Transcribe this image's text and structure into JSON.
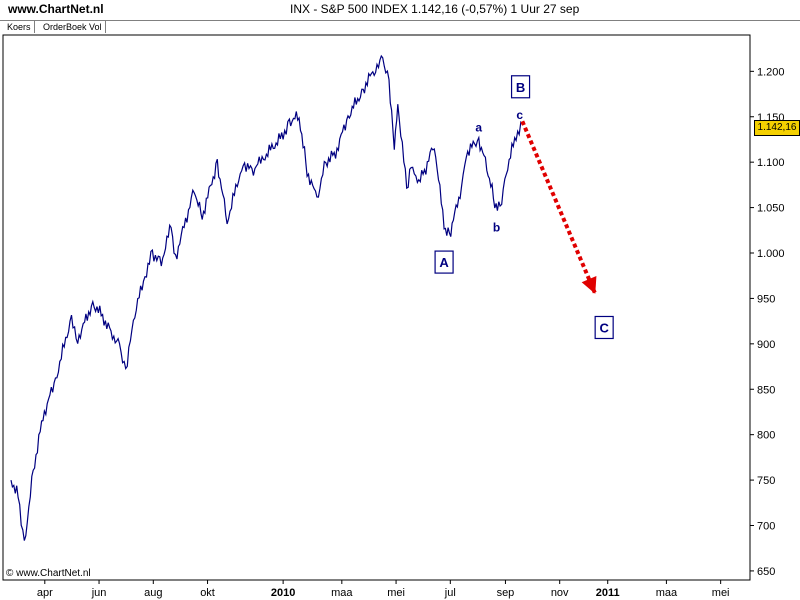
{
  "header": {
    "site": "www.ChartNet.nl",
    "title": "INX - S&P 500 INDEX    1.142,16 (-0,57%)    1 Uur  27 sep"
  },
  "tabs": [
    "Koers",
    "OrderBoek Vol"
  ],
  "copyright": "© www.ChartNet.nl",
  "chart_data": {
    "type": "line",
    "ylim": [
      640,
      1240
    ],
    "y_ticks": [
      650,
      700,
      750,
      800,
      850,
      900,
      950,
      1000,
      1050,
      1100,
      1150,
      1200
    ],
    "y_tick_labels": [
      "650",
      "700",
      "750",
      "800",
      "850",
      "900",
      "950",
      "1.000",
      "1.050",
      "1.100",
      "1.150",
      "1.200"
    ],
    "x_labels": [
      "apr",
      "jun",
      "aug",
      "okt",
      "2010",
      "maa",
      "mei",
      "jul",
      "sep",
      "nov",
      "2011",
      "maa",
      "mei"
    ],
    "last_value_label": "1.142,16",
    "series": [
      {
        "color": "#000080",
        "x": [
          "2009-03-01",
          "2009-03-09",
          "2009-03-16",
          "2009-03-26",
          "2009-04-06",
          "2009-04-20",
          "2009-05-08",
          "2009-05-15",
          "2009-06-01",
          "2009-06-12",
          "2009-06-23",
          "2009-07-01",
          "2009-07-08",
          "2009-07-15",
          "2009-07-28",
          "2009-08-07",
          "2009-08-17",
          "2009-08-28",
          "2009-09-02",
          "2009-09-23",
          "2009-10-02",
          "2009-10-19",
          "2009-10-30",
          "2009-11-17",
          "2009-11-27",
          "2009-12-10",
          "2010-01-01",
          "2010-01-08",
          "2010-01-19",
          "2010-01-28",
          "2010-02-08",
          "2010-02-18",
          "2010-03-01",
          "2010-03-15",
          "2010-04-01",
          "2010-04-15",
          "2010-04-23",
          "2010-04-30",
          "2010-05-06",
          "2010-05-10",
          "2010-05-20",
          "2010-05-25",
          "2010-06-01",
          "2010-06-09",
          "2010-06-20",
          "2010-07-01",
          "2010-07-07",
          "2010-07-19",
          "2010-07-26",
          "2010-08-09",
          "2010-08-18",
          "2010-08-27",
          "2010-09-02",
          "2010-09-09",
          "2010-09-20",
          "2010-09-27"
        ],
        "values": [
          750,
          735,
          680,
          760,
          820,
          860,
          930,
          905,
          945,
          930,
          910,
          900,
          870,
          920,
          970,
          1000,
          990,
          1030,
          995,
          1070,
          1040,
          1100,
          1035,
          1100,
          1090,
          1105,
          1130,
          1145,
          1150,
          1090,
          1060,
          1100,
          1110,
          1150,
          1180,
          1205,
          1215,
          1190,
          1120,
          1165,
          1070,
          1100,
          1080,
          1090,
          1120,
          1030,
          1020,
          1065,
          1110,
          1125,
          1095,
          1055,
          1050,
          1090,
          1130,
          1142
        ]
      }
    ],
    "annotations": [
      {
        "label": "A",
        "x": "2010-07-01",
        "value": 990,
        "boxed": true
      },
      {
        "label": "B",
        "x": "2010-09-25",
        "value": 1183,
        "boxed": true
      },
      {
        "label": "C",
        "x": "2010-12-28",
        "value": 918,
        "boxed": true
      },
      {
        "label": "a",
        "x": "2010-08-09",
        "value": 1138,
        "boxed": false
      },
      {
        "label": "b",
        "x": "2010-08-29",
        "value": 1028,
        "boxed": false
      },
      {
        "label": "c",
        "x": "2010-09-24",
        "value": 1152,
        "boxed": false
      }
    ],
    "projection": {
      "from_x": "2010-09-27",
      "from_value": 1145,
      "to_x": "2010-12-18",
      "to_value": 955,
      "color": "#e00000"
    },
    "colors": {
      "line": "#000080",
      "box": "#000080",
      "projection": "#e00000",
      "last_label_bg": "#f4d000"
    }
  }
}
